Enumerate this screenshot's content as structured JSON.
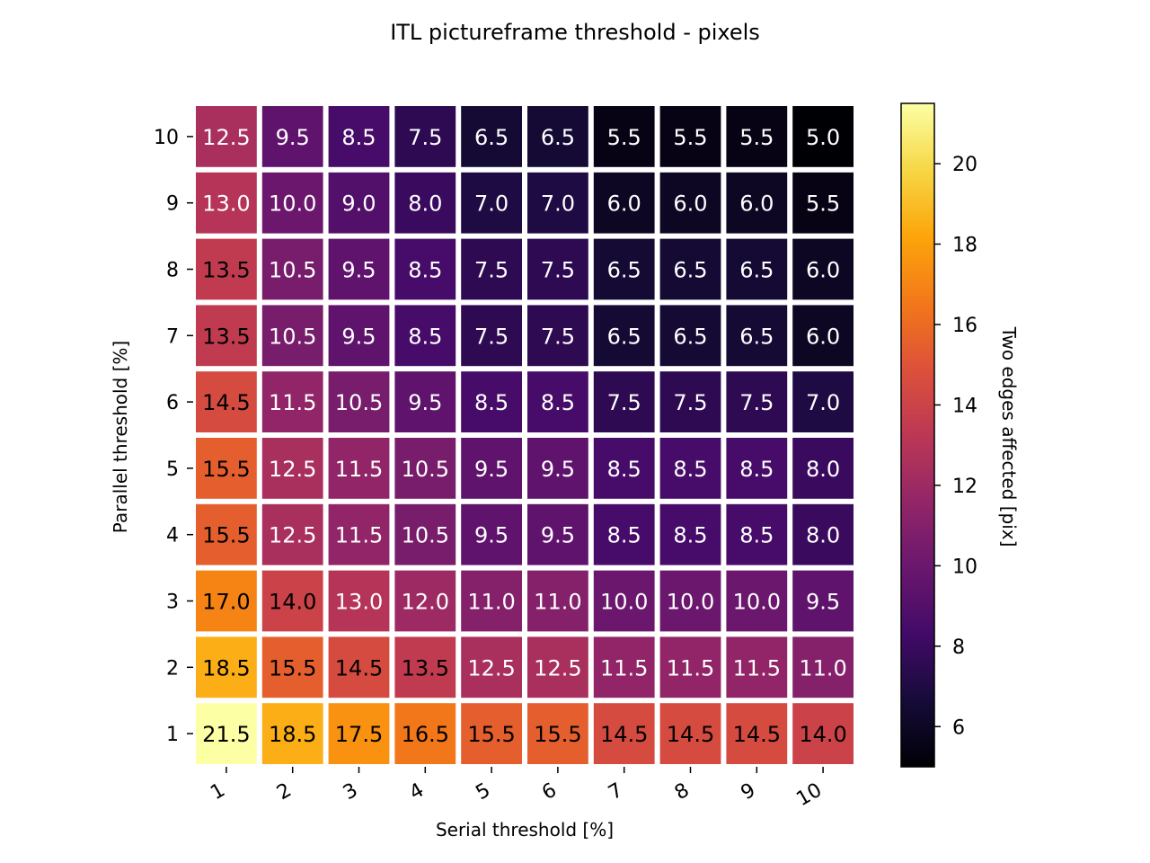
{
  "chart_data": {
    "type": "heatmap",
    "title": "ITL pictureframe threshold - pixels",
    "xlabel": "Serial threshold [%]",
    "ylabel": "Parallel threshold [%]",
    "colorbar_label": "Two edges affected [pix]",
    "colormap": "inferno",
    "x": [
      "1",
      "2",
      "3",
      "4",
      "5",
      "6",
      "7",
      "8",
      "9",
      "10"
    ],
    "y": [
      "1",
      "2",
      "3",
      "4",
      "5",
      "6",
      "7",
      "8",
      "9",
      "10"
    ],
    "values": [
      [
        21.5,
        18.5,
        17.5,
        16.5,
        15.5,
        15.5,
        14.5,
        14.5,
        14.5,
        14.0
      ],
      [
        18.5,
        15.5,
        14.5,
        13.5,
        12.5,
        12.5,
        11.5,
        11.5,
        11.5,
        11.0
      ],
      [
        17.0,
        14.0,
        13.0,
        12.0,
        11.0,
        11.0,
        10.0,
        10.0,
        10.0,
        9.5
      ],
      [
        15.5,
        12.5,
        11.5,
        10.5,
        9.5,
        9.5,
        8.5,
        8.5,
        8.5,
        8.0
      ],
      [
        15.5,
        12.5,
        11.5,
        10.5,
        9.5,
        9.5,
        8.5,
        8.5,
        8.5,
        8.0
      ],
      [
        14.5,
        11.5,
        10.5,
        9.5,
        8.5,
        8.5,
        7.5,
        7.5,
        7.5,
        7.0
      ],
      [
        13.5,
        10.5,
        9.5,
        8.5,
        7.5,
        7.5,
        6.5,
        6.5,
        6.5,
        6.0
      ],
      [
        13.5,
        10.5,
        9.5,
        8.5,
        7.5,
        7.5,
        6.5,
        6.5,
        6.5,
        6.0
      ],
      [
        13.0,
        10.0,
        9.0,
        8.0,
        7.0,
        7.0,
        6.0,
        6.0,
        6.0,
        5.5
      ],
      [
        12.5,
        9.5,
        8.5,
        7.5,
        6.5,
        6.5,
        5.5,
        5.5,
        5.5,
        5.0
      ]
    ],
    "vmin": 5.0,
    "vmax": 21.5,
    "colorbar_ticks": [
      6,
      8,
      10,
      12,
      14,
      16,
      18,
      20
    ]
  }
}
